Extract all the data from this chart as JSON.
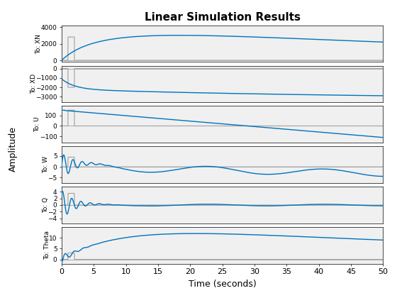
{
  "title": "Linear Simulation Results",
  "xlabel": "Time (seconds)",
  "ylabel": "Amplitude",
  "t_end": 50,
  "subplots": [
    {
      "label": "To: XN",
      "ylim": [
        -200,
        4200
      ],
      "yticks": [
        0,
        2000,
        4000
      ]
    },
    {
      "label": "To: XD",
      "ylim": [
        -3600,
        300
      ],
      "yticks": [
        -3000,
        -2000,
        -1000,
        0
      ]
    },
    {
      "label": "To: U",
      "ylim": [
        -160,
        190
      ],
      "yticks": [
        -100,
        0,
        100
      ]
    },
    {
      "label": "To: W",
      "ylim": [
        -7.5,
        9.5
      ],
      "yticks": [
        -5,
        0,
        5
      ]
    },
    {
      "label": "To: Q",
      "ylim": [
        -5.5,
        5.5
      ],
      "yticks": [
        -4,
        -2,
        0,
        2,
        4
      ]
    },
    {
      "label": "To: Theta",
      "ylim": [
        -2,
        15
      ],
      "yticks": [
        0,
        5,
        10
      ]
    }
  ],
  "line_color": "#0072BD",
  "step_color": "#A8A8A8",
  "bg_color": "#FFFFFF",
  "subplot_bg": "#F0F0F0",
  "xticks": [
    0,
    5,
    10,
    15,
    20,
    25,
    30,
    35,
    40,
    45,
    50
  ]
}
